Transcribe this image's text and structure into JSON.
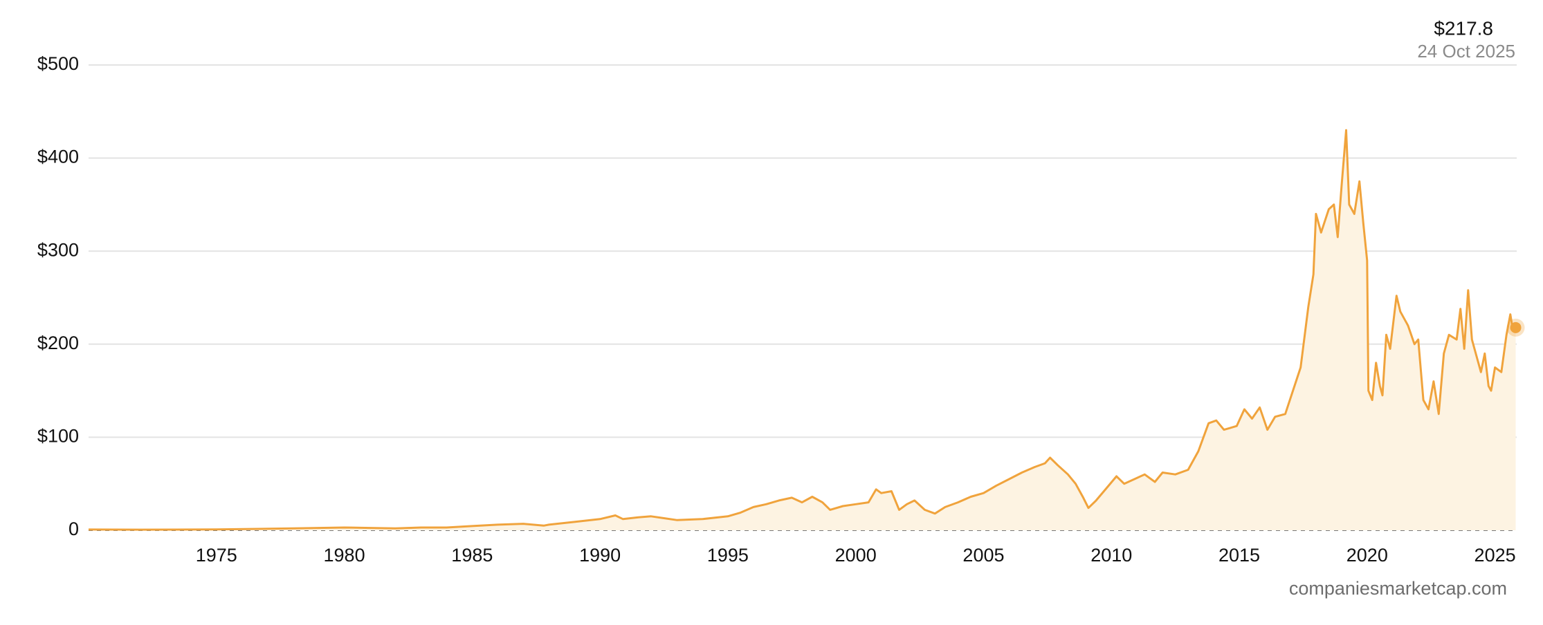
{
  "chart_data": {
    "type": "line",
    "last_value_label": "$217.8",
    "last_date_label": "24 Oct 2025",
    "source": "companiesmarketcap.com",
    "color": "#f0a33c",
    "fill_color": "#fdf3e2",
    "grid": true,
    "xlim": [
      1970,
      2025.85
    ],
    "xticks": [
      1975,
      1980,
      1985,
      1990,
      1995,
      2000,
      2005,
      2010,
      2015,
      2020,
      2025
    ],
    "ylim": [
      0,
      500
    ],
    "yticks": [
      0,
      {
        "value": 100,
        "label": "$100"
      },
      {
        "value": 200,
        "label": "$200"
      },
      {
        "value": 300,
        "label": "$300"
      },
      {
        "value": 400,
        "label": "$400"
      },
      {
        "value": 500,
        "label": "$500"
      }
    ],
    "x": [
      1970,
      1972,
      1975,
      1978,
      1980,
      1981,
      1982,
      1983,
      1984,
      1985,
      1986,
      1987,
      1987.8,
      1988,
      1989,
      1990,
      1990.6,
      1990.9,
      1991.5,
      1992,
      1992.5,
      1993,
      1994,
      1995,
      1995.5,
      1996,
      1996.5,
      1997,
      1997.5,
      1997.9,
      1998.3,
      1998.7,
      1999,
      1999.5,
      2000,
      2000.5,
      2000.8,
      2001,
      2001.4,
      2001.7,
      2002,
      2002.3,
      2002.7,
      2003.1,
      2003.5,
      2004,
      2004.5,
      2005,
      2005.5,
      2006,
      2006.5,
      2007,
      2007.4,
      2007.6,
      2007.9,
      2008.3,
      2008.6,
      2008.9,
      2009.1,
      2009.4,
      2009.8,
      2010.2,
      2010.5,
      2010.9,
      2011.3,
      2011.7,
      2012,
      2012.5,
      2013,
      2013.4,
      2013.8,
      2014.1,
      2014.4,
      2014.9,
      2015.2,
      2015.5,
      2015.8,
      2016.1,
      2016.4,
      2016.8,
      2017.1,
      2017.4,
      2017.7,
      2017.9,
      2018.0,
      2018.2,
      2018.5,
      2018.7,
      2018.85,
      2019.0,
      2019.18,
      2019.3,
      2019.5,
      2019.7,
      2019.85,
      2020.0,
      2020.05,
      2020.2,
      2020.35,
      2020.5,
      2020.6,
      2020.75,
      2020.9,
      2021.15,
      2021.3,
      2021.6,
      2021.85,
      2022.0,
      2022.2,
      2022.4,
      2022.6,
      2022.8,
      2023.0,
      2023.2,
      2023.5,
      2023.65,
      2023.8,
      2023.95,
      2024.1,
      2024.3,
      2024.45,
      2024.6,
      2024.75,
      2024.85,
      2025.0,
      2025.25,
      2025.45,
      2025.6,
      2025.7,
      2025.81
    ],
    "values": [
      0.8,
      0.7,
      0.9,
      2,
      3,
      2.5,
      2,
      3,
      3,
      4.5,
      6,
      7,
      5,
      6,
      9,
      12,
      16,
      12,
      14,
      15,
      13,
      11,
      12,
      15,
      19,
      25,
      28,
      32,
      35,
      30,
      36,
      30,
      22,
      26,
      28,
      30,
      44,
      40,
      42,
      22,
      28,
      32,
      22,
      18,
      25,
      30,
      36,
      40,
      48,
      55,
      62,
      68,
      72,
      78,
      70,
      60,
      50,
      35,
      24,
      32,
      45,
      58,
      50,
      55,
      60,
      52,
      62,
      60,
      65,
      85,
      115,
      118,
      108,
      112,
      130,
      120,
      132,
      108,
      122,
      125,
      150,
      175,
      240,
      275,
      340,
      320,
      345,
      350,
      315,
      370,
      430,
      350,
      340,
      375,
      330,
      290,
      150,
      140,
      180,
      155,
      145,
      210,
      195,
      252,
      235,
      220,
      200,
      205,
      140,
      130,
      160,
      125,
      190,
      210,
      205,
      238,
      195,
      258,
      205,
      185,
      170,
      190,
      155,
      150,
      175,
      170,
      210,
      232,
      215,
      217.8
    ]
  }
}
